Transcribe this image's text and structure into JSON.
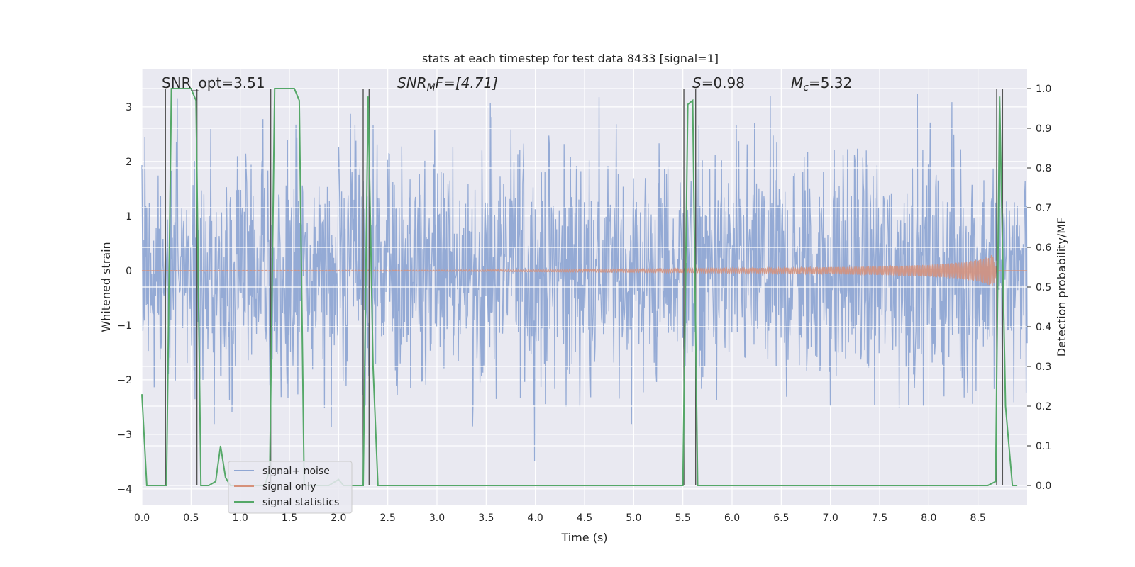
{
  "chart_data": {
    "type": "line",
    "title": "stats at each timestep for test data 8433 [signal=1]",
    "xlabel": "Time (s)",
    "ylabel": "Whitened strain",
    "y2label": "Detection probability/MF",
    "xlim": [
      0.0,
      9.0
    ],
    "ylim": [
      -4.3,
      3.7
    ],
    "y2lim": [
      -0.05,
      1.05
    ],
    "x_ticks": [
      0.0,
      0.5,
      1.0,
      1.5,
      2.0,
      2.5,
      3.0,
      3.5,
      4.0,
      4.5,
      5.0,
      5.5,
      6.0,
      6.5,
      7.0,
      7.5,
      8.0,
      8.5
    ],
    "x_tick_labels": [
      "0.0",
      "0.5",
      "1.0",
      "1.5",
      "2.0",
      "2.5",
      "3.0",
      "3.5",
      "4.0",
      "4.5",
      "5.0",
      "5.5",
      "6.0",
      "6.5",
      "7.0",
      "7.5",
      "8.0",
      "8.5"
    ],
    "y_ticks": [
      -4,
      -3,
      -2,
      -1,
      0,
      1,
      2,
      3
    ],
    "y_tick_labels": [
      "−4",
      "−3",
      "−2",
      "−1",
      "0",
      "1",
      "2",
      "3"
    ],
    "y2_ticks": [
      0.0,
      0.1,
      0.2,
      0.3,
      0.4,
      0.5,
      0.6,
      0.7,
      0.8,
      0.9,
      1.0
    ],
    "y2_tick_labels": [
      "0.0",
      "0.1",
      "0.2",
      "0.3",
      "0.4",
      "0.5",
      "0.6",
      "0.7",
      "0.8",
      "0.9",
      "1.0"
    ],
    "grid": true,
    "legend_position": "bottom-left",
    "annotations": {
      "snr_opt": "SNR_opt=3.51",
      "snr_mf_prefix": "SNR",
      "snr_mf_sub": "M",
      "snr_mf_suffix": "F=[4.71]",
      "s_label": "S",
      "s_value": "=0.98",
      "mc_label": "M",
      "mc_sub": "c",
      "mc_value": "=5.32"
    },
    "series": [
      {
        "name": "signal+ noise",
        "color": "#8fa6d3",
        "description": "whitened strain noise, approx. range -4 to 3.3",
        "duration": 9.0,
        "sample_count": 1800
      },
      {
        "name": "signal only",
        "color": "#d6917a",
        "description": "chirp envelope growing toward merger at ~8.65 s, peak amplitude ~0.3",
        "envelope": {
          "x": [
            0.0,
            3.0,
            5.0,
            6.5,
            7.5,
            8.0,
            8.3,
            8.5,
            8.6,
            8.65,
            8.7,
            9.0
          ],
          "amp": [
            0.002,
            0.01,
            0.03,
            0.05,
            0.08,
            0.11,
            0.15,
            0.2,
            0.26,
            0.3,
            0.0,
            0.0
          ]
        }
      },
      {
        "name": "signal statistics",
        "color": "#55a868",
        "axis": "right",
        "x": [
          0.0,
          0.05,
          0.25,
          0.3,
          0.5,
          0.55,
          0.6,
          0.68,
          0.75,
          0.8,
          0.85,
          0.9,
          1.25,
          1.3,
          1.35,
          1.55,
          1.6,
          1.65,
          1.9,
          2.0,
          2.05,
          2.25,
          2.3,
          2.35,
          2.4,
          5.5,
          5.55,
          5.6,
          5.65,
          8.6,
          8.68,
          8.72,
          8.78,
          8.85,
          8.9
        ],
        "values": [
          0.23,
          0.0,
          0.0,
          1.0,
          1.0,
          0.97,
          0.0,
          0.0,
          0.01,
          0.1,
          0.02,
          0.0,
          0.0,
          0.04,
          1.0,
          1.0,
          0.97,
          0.0,
          0.0,
          0.015,
          0.0,
          0.0,
          0.98,
          0.3,
          0.0,
          0.0,
          0.96,
          0.97,
          0.0,
          0.0,
          0.01,
          0.98,
          0.2,
          0.0,
          0.0
        ]
      }
    ],
    "vertical_markers": [
      0.24,
      0.56,
      1.31,
      2.25,
      2.31,
      5.51,
      5.63,
      8.69,
      8.75
    ]
  }
}
